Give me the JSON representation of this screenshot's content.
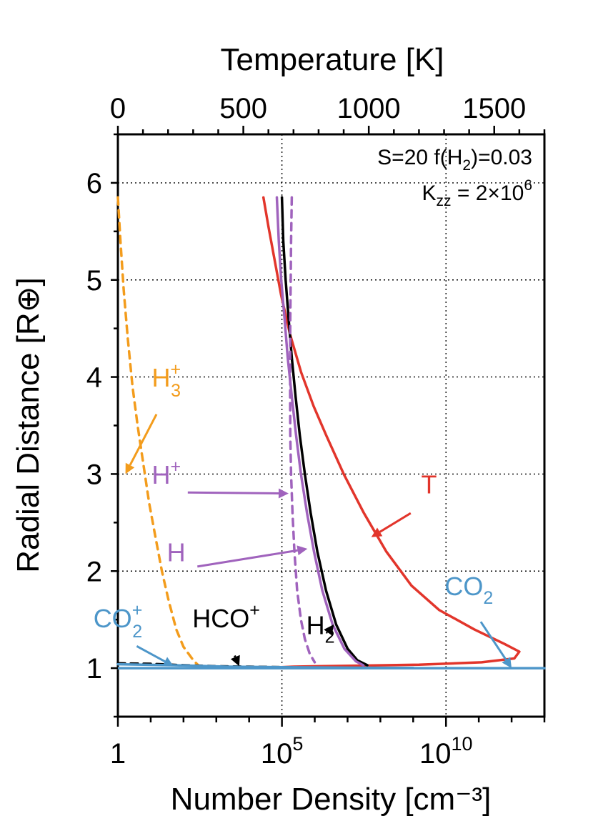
{
  "chart_data": {
    "type": "line",
    "title": "",
    "xlabel_bottom": "Number Density [cm⁻³]",
    "xlabel_top": "Temperature [K]",
    "ylabel": "Radial Distance [R⊕]",
    "x_bottom": {
      "scale": "log",
      "range": [
        1,
        10000000000000.0
      ],
      "tick_labels": [
        {
          "value": 1,
          "base": "1",
          "exp": ""
        },
        {
          "value": 100000,
          "base": "10",
          "exp": "5"
        },
        {
          "value": 10000000000,
          "base": "10",
          "exp": "10"
        }
      ]
    },
    "x_top": {
      "scale": "linear",
      "range": [
        0,
        1700
      ],
      "ticks": [
        0,
        500,
        1000,
        1500
      ],
      "tick_labels": [
        "0",
        "500",
        "1000",
        "1500"
      ]
    },
    "y": {
      "scale": "linear",
      "range": [
        0.5,
        6.5
      ],
      "ticks": [
        1,
        2,
        3,
        4,
        5,
        6
      ],
      "tick_labels": [
        "1",
        "2",
        "3",
        "4",
        "5",
        "6"
      ]
    },
    "grid": true,
    "annotation": {
      "line1_a": "S=20  f(H",
      "line1_sub": "2",
      "line1_b": ")=0.03",
      "line2_a": "K",
      "line2_sub": "zz",
      "line2_b": " = 2×10",
      "line2_sup": "6"
    },
    "series": [
      {
        "name": "H3+",
        "label_base": "H",
        "label_sub": "3",
        "label_sup": "+",
        "color": "#f39c1c",
        "dashed": true,
        "points": [
          [
            1,
            5.85
          ],
          [
            1.2,
            5.4
          ],
          [
            1.5,
            4.9
          ],
          [
            2,
            4.4
          ],
          [
            2.8,
            3.9
          ],
          [
            4,
            3.5
          ],
          [
            6,
            3.1
          ],
          [
            9,
            2.7
          ],
          [
            14,
            2.35
          ],
          [
            22,
            2.0
          ],
          [
            35,
            1.7
          ],
          [
            60,
            1.4
          ],
          [
            100,
            1.22
          ],
          [
            200,
            1.08
          ],
          [
            280,
            1.03
          ]
        ]
      },
      {
        "name": "T",
        "label_base": "T",
        "label_sub": "",
        "label_sup": "",
        "color": "#e2352b",
        "dashed": false,
        "axis": "top",
        "points": [
          [
            580,
            5.85
          ],
          [
            600,
            5.55
          ],
          [
            625,
            5.2
          ],
          [
            650,
            4.85
          ],
          [
            685,
            4.45
          ],
          [
            730,
            4.05
          ],
          [
            780,
            3.7
          ],
          [
            830,
            3.4
          ],
          [
            900,
            3.0
          ],
          [
            980,
            2.6
          ],
          [
            1070,
            2.2
          ],
          [
            1170,
            1.85
          ],
          [
            1280,
            1.6
          ],
          [
            1420,
            1.4
          ],
          [
            1540,
            1.25
          ],
          [
            1600,
            1.17
          ],
          [
            1580,
            1.1
          ],
          [
            1450,
            1.06
          ],
          [
            1200,
            1.035
          ],
          [
            800,
            1.02
          ],
          [
            700,
            1.015
          ],
          [
            650,
            1.01
          ]
        ]
      },
      {
        "name": "H2",
        "label_base": "H",
        "label_sub": "2",
        "label_sup": "",
        "color": "#000000",
        "dashed": false,
        "points": [
          [
            100000,
            5.85
          ],
          [
            110000,
            5.4
          ],
          [
            130000,
            5.0
          ],
          [
            160000,
            4.6
          ],
          [
            200000,
            4.2
          ],
          [
            260000,
            3.8
          ],
          [
            350000,
            3.4
          ],
          [
            500000,
            3.0
          ],
          [
            750000,
            2.6
          ],
          [
            1200000,
            2.2
          ],
          [
            2200000,
            1.8
          ],
          [
            4500000,
            1.45
          ],
          [
            10000000,
            1.2
          ],
          [
            20000000,
            1.08
          ],
          [
            40000000,
            1.03
          ]
        ]
      },
      {
        "name": "H",
        "label_base": "H",
        "label_sub": "",
        "label_sup": "",
        "color": "#a063bd",
        "dashed": false,
        "points": [
          [
            70000,
            5.85
          ],
          [
            80000,
            5.4
          ],
          [
            95000,
            5.0
          ],
          [
            120000,
            4.6
          ],
          [
            150000,
            4.2
          ],
          [
            200000,
            3.8
          ],
          [
            270000,
            3.4
          ],
          [
            380000,
            3.0
          ],
          [
            580000,
            2.6
          ],
          [
            950000,
            2.2
          ],
          [
            1700000,
            1.8
          ],
          [
            3500000,
            1.45
          ],
          [
            8000000,
            1.2
          ],
          [
            18000000,
            1.07
          ],
          [
            30000000,
            1.03
          ]
        ]
      },
      {
        "name": "H+",
        "label_base": "H",
        "label_sub": "",
        "label_sup": "+",
        "color": "#a063bd",
        "dashed": true,
        "points": [
          [
            200000,
            5.85
          ],
          [
            190000,
            5.4
          ],
          [
            185000,
            5.0
          ],
          [
            180000,
            4.6
          ],
          [
            178000,
            4.2
          ],
          [
            178000,
            3.8
          ],
          [
            180000,
            3.4
          ],
          [
            190000,
            3.0
          ],
          [
            210000,
            2.6
          ],
          [
            240000,
            2.2
          ],
          [
            290000,
            1.8
          ],
          [
            380000,
            1.5
          ],
          [
            500000,
            1.3
          ],
          [
            700000,
            1.15
          ],
          [
            1000000,
            1.06
          ]
        ]
      },
      {
        "name": "HCO+",
        "label_base": "HCO",
        "label_sub": "",
        "label_sup": "+",
        "color": "#000000",
        "dashed": true,
        "points": [
          [
            1,
            1.05
          ],
          [
            10,
            1.045
          ],
          [
            100,
            1.03
          ],
          [
            1000,
            1.02
          ],
          [
            10000,
            1.015
          ],
          [
            100000,
            1.01
          ],
          [
            500000,
            1.005
          ]
        ]
      },
      {
        "name": "CO2+",
        "label_base": "CO",
        "label_sub": "2",
        "label_sup": "+",
        "color": "#4d96c9",
        "dashed": false,
        "points": [
          [
            1,
            1.04
          ],
          [
            50,
            1.03
          ],
          [
            2000,
            1.015
          ],
          [
            100000,
            1.01
          ],
          [
            10000000,
            1.005
          ],
          [
            1000000000,
            1.003
          ]
        ]
      },
      {
        "name": "CO2",
        "label_base": "CO",
        "label_sub": "2",
        "label_sup": "",
        "color": "#4d96c9",
        "dashed": false,
        "points": [
          [
            1,
            1.0
          ],
          [
            10000,
            1.0
          ],
          [
            100000000,
            1.0
          ],
          [
            10000000000000.0,
            1.0
          ]
        ]
      }
    ],
    "labels": [
      {
        "series": "H3+",
        "at": [
          30,
          3.9
        ],
        "arrow_to": [
          1.7,
          3.0
        ]
      },
      {
        "series": "H+",
        "at": [
          30,
          2.9
        ],
        "arrow_to": [
          160000,
          2.8
        ]
      },
      {
        "series": "H",
        "at": [
          60,
          2.1
        ],
        "arrow_to": [
          600000,
          2.23
        ]
      },
      {
        "series": "T",
        "axis": "top",
        "at": [
          1240,
          2.8
        ],
        "arrow_to": [
          1010,
          2.35
        ]
      },
      {
        "series": "H2",
        "at": [
          1500000,
          1.35
        ],
        "arrow_to": [
          3800000,
          1.45
        ]
      },
      {
        "series": "HCO+",
        "at": [
          2000,
          1.42
        ],
        "arrow_to": [
          5000,
          1.02
        ]
      },
      {
        "series": "CO2+",
        "at": [
          1,
          1.42
        ],
        "arrow_to": [
          50,
          1.02
        ]
      },
      {
        "series": "CO2",
        "at": [
          50000000000,
          1.75
        ],
        "arrow_to": [
          1000000000000,
          1.0
        ]
      }
    ]
  }
}
